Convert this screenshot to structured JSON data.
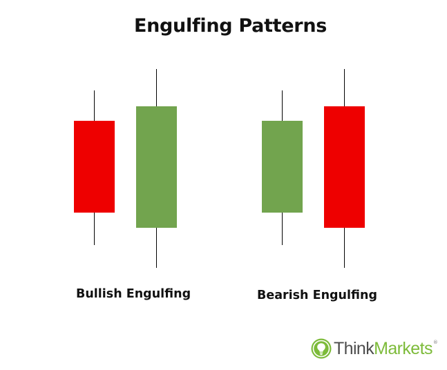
{
  "title": "Engulfing Patterns",
  "colors": {
    "bearish": "#ee0000",
    "bullish": "#72a44e",
    "wick": "#000000",
    "logo_think": "#4d4d4d",
    "logo_markets": "#7dbb3a"
  },
  "patterns": [
    {
      "label": "Bullish Engulfing"
    },
    {
      "label": "Bearish Engulfing"
    }
  ],
  "logo": {
    "icon": "lightbulb-logo-icon",
    "think": "Think",
    "markets": "Markets",
    "registered": "®"
  }
}
